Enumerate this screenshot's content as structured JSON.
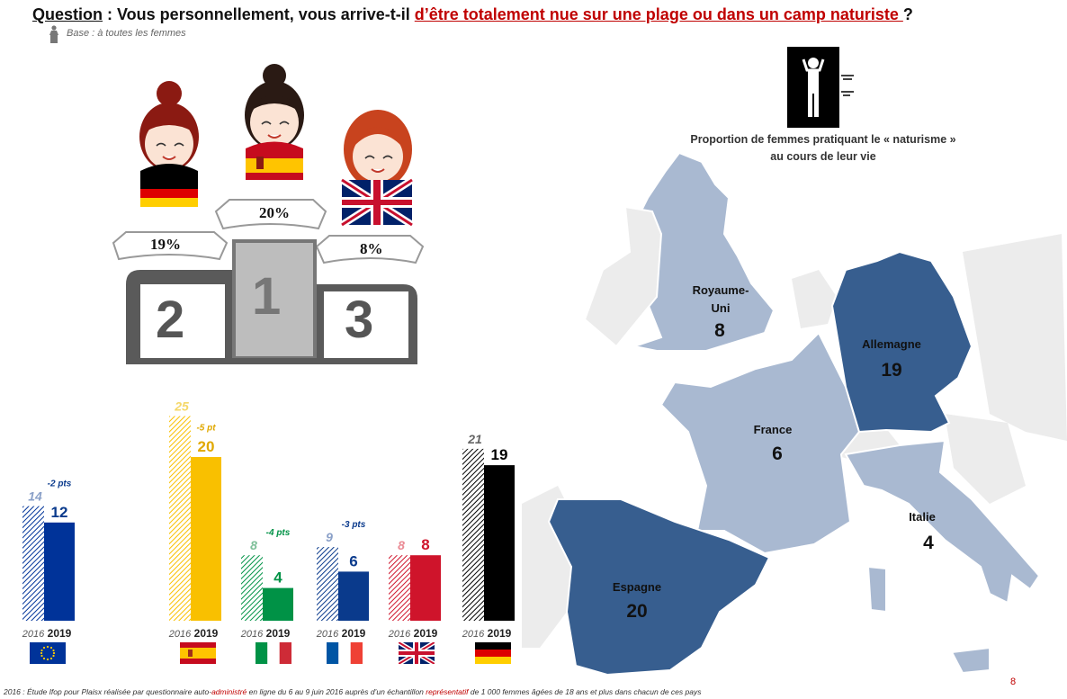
{
  "header": {
    "question_label": "Question",
    "question_text": " : Vous personnellement, vous arrive-t-il ",
    "question_highlight": "d’être totalement nue sur une plage ou dans un camp naturiste ",
    "question_end": " ?",
    "base": "Base : à toutes les femmes"
  },
  "podium": {
    "first_value": "20%",
    "second_value": "19%",
    "third_value": "8%",
    "first_rank": "1",
    "second_rank": "2",
    "third_rank": "3"
  },
  "map": {
    "title_line1": "Proportion de femmes pratiquant le « naturisme »",
    "title_line2": "au cours de leur vie",
    "countries": [
      {
        "name_line1": "Royaume-",
        "name_line2": "Uni",
        "value": "8"
      },
      {
        "name_line1": "Allemagne",
        "value": "19"
      },
      {
        "name_line1": "France",
        "value": "6"
      },
      {
        "name_line1": "Italie",
        "value": "4"
      },
      {
        "name_line1": "Espagne",
        "value": "20"
      }
    ],
    "colors": {
      "high": "#375e8f",
      "low": "#a9b9d1",
      "none": "#ececec"
    }
  },
  "chart_data": {
    "type": "bar",
    "categories": [
      "Europe",
      "Espagne",
      "Italie",
      "France",
      "Royaume-Uni",
      "Allemagne"
    ],
    "series": [
      {
        "name": "2016",
        "values": [
          14,
          25,
          8,
          9,
          8,
          21
        ]
      },
      {
        "name": "2019",
        "values": [
          12,
          20,
          4,
          6,
          8,
          19
        ]
      }
    ],
    "evolution_labels": [
      "-2 pts",
      "-5 pt",
      "-4 pts",
      "-3 pts",
      "",
      ""
    ],
    "colors": [
      "#003399",
      "#f9c000",
      "#009246",
      "#0a3a8c",
      "#cf142b",
      "#000000"
    ],
    "year_labels": [
      "2016",
      "2019"
    ]
  },
  "footer": {
    "footnote_a": "2016 : Étude Ifop pour Plaisx réalisée par questionnaire auto-",
    "footnote_b": "administré",
    "footnote_c": " en ligne du 6 au 9 juin 2016 auprès d’un échantillon ",
    "footnote_d": "représentatif",
    "footnote_e": " de 1 000 femmes âgées de 18 ans et plus dans chacun de ces pays",
    "page": "8"
  }
}
